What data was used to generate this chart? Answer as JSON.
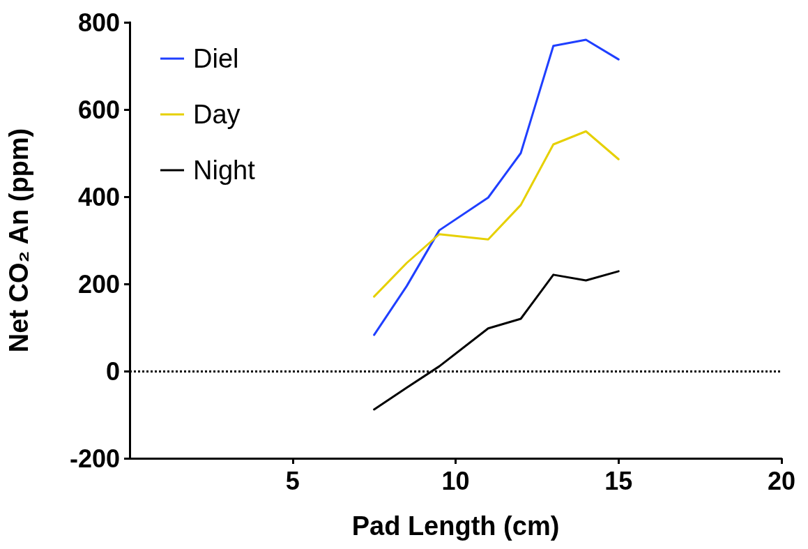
{
  "chart_data": {
    "type": "line",
    "xlabel": "Pad Length (cm)",
    "ylabel": "Net CO₂ An (ppm)",
    "x": [
      7.5,
      8.5,
      9.5,
      11,
      12,
      13,
      14,
      15
    ],
    "series": [
      {
        "name": "Diel",
        "color": "#1f3fff",
        "values": [
          83,
          195,
          323,
          398,
          500,
          746,
          760,
          715
        ]
      },
      {
        "name": "Day",
        "color": "#e6d000",
        "values": [
          171,
          248,
          314,
          302,
          381,
          520,
          550,
          486
        ]
      },
      {
        "name": "Night",
        "color": "#000000",
        "values": [
          -88,
          -38,
          11,
          98,
          120,
          221,
          208,
          229
        ]
      }
    ],
    "xlim": [
      0,
      20
    ],
    "xticks": [
      5,
      10,
      15,
      20
    ],
    "ylim": [
      -200,
      800
    ],
    "yticks": [
      -200,
      0,
      200,
      400,
      600,
      800
    ],
    "ref_lines": [
      {
        "axis": "y",
        "value": 0,
        "line_style": "dotted",
        "color": "#000000"
      }
    ],
    "grid": false,
    "legend": "top left",
    "marker": "none",
    "line_style": "solid"
  }
}
